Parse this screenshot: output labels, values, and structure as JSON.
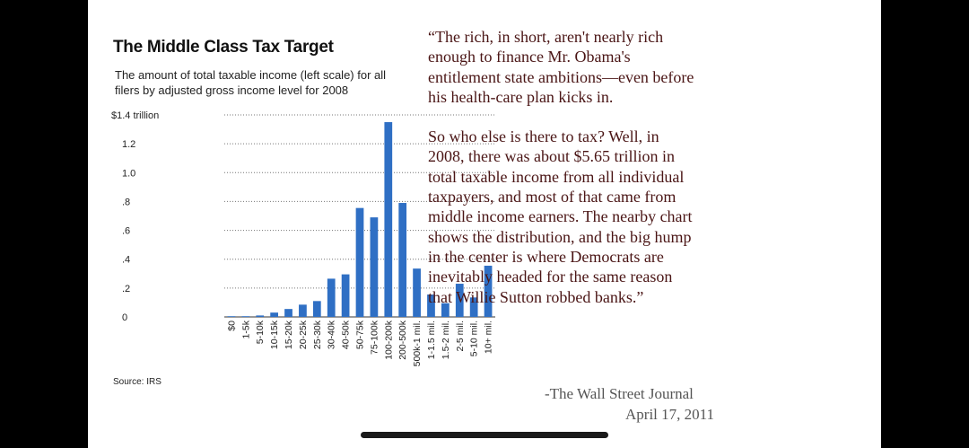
{
  "chart_data": {
    "type": "bar",
    "title": "The Middle Class Tax Target",
    "subtitle": "The amount of total taxable income (left scale) for all filers by adjusted gross income level for 2008",
    "source": "Source: IRS",
    "ylabel": "",
    "xlabel": "",
    "ylim": [
      0,
      1.4
    ],
    "y_ticks": [
      0,
      0.2,
      0.4,
      0.6,
      0.8,
      1.0,
      1.2,
      1.4
    ],
    "y_tick_labels": [
      "0",
      ".2",
      ".4",
      ".6",
      ".8",
      "1.0",
      "1.2",
      "$1.4 trillion"
    ],
    "grid": true,
    "categories": [
      "$0",
      "1-5k",
      "5-10k",
      "10-15k",
      "15-20k",
      "20-25k",
      "25-30k",
      "30-40k",
      "40-50k",
      "50-75k",
      "75-100k",
      "100-200k",
      "200-500k",
      "500k-1 mil.",
      "1-1.5 mil.",
      "1.5-2 mil.",
      "2-5 mil.",
      "5-10 mil.",
      "10+ mil."
    ],
    "values": [
      0.0,
      0.005,
      0.01,
      0.03,
      0.055,
      0.085,
      0.11,
      0.265,
      0.295,
      0.755,
      0.69,
      1.35,
      0.79,
      0.335,
      0.155,
      0.095,
      0.23,
      0.135,
      0.355
    ],
    "bar_color": "#2f6fc4"
  },
  "quote": {
    "paragraph1": "“The rich, in short, aren't nearly rich enough to finance Mr. Obama's entitlement state ambitions—even before his health-care plan kicks in.",
    "paragraph2": "So who else is there to tax? Well, in 2008, there was about $5.65 trillion in total taxable income from all individual taxpayers, and most of that came from middle income earners. The nearby chart shows the distribution, and the big hump in the center is where Democrats are inevitably headed for the same reason that Willie Sutton robbed banks.”"
  },
  "attribution": {
    "source": "-The Wall Street Journal",
    "date": "April 17, 2011"
  }
}
